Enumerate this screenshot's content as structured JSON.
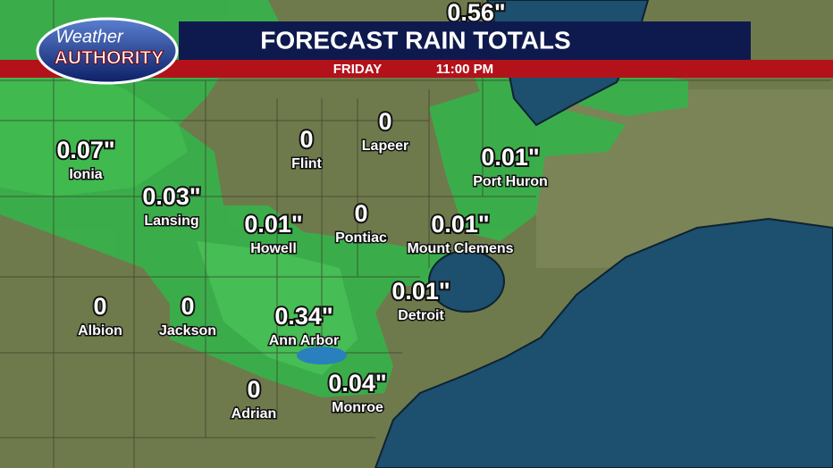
{
  "header": {
    "logo": {
      "line1": "Weather",
      "line2": "AUTHORITY"
    },
    "title": "FORECAST RAIN TOTALS",
    "day": "FRIDAY",
    "time": "11:00 PM"
  },
  "locations": [
    {
      "amount": "0.56\""
    },
    {
      "name": "Ionia",
      "amount": "0.07\""
    },
    {
      "name": "Lansing",
      "amount": "0.03\""
    },
    {
      "name": "Flint",
      "amount": "0"
    },
    {
      "name": "Lapeer",
      "amount": "0"
    },
    {
      "name": "Port Huron",
      "amount": "0.01\""
    },
    {
      "name": "Howell",
      "amount": "0.01\""
    },
    {
      "name": "Pontiac",
      "amount": "0"
    },
    {
      "name": "Mount Clemens",
      "amount": "0.01\""
    },
    {
      "name": "Albion",
      "amount": "0"
    },
    {
      "name": "Jackson",
      "amount": "0"
    },
    {
      "name": "Ann Arbor",
      "amount": "0.34\""
    },
    {
      "name": "Detroit",
      "amount": "0.01\""
    },
    {
      "name": "Adrian",
      "amount": "0"
    },
    {
      "name": "Monroe",
      "amount": "0.04\""
    }
  ]
}
